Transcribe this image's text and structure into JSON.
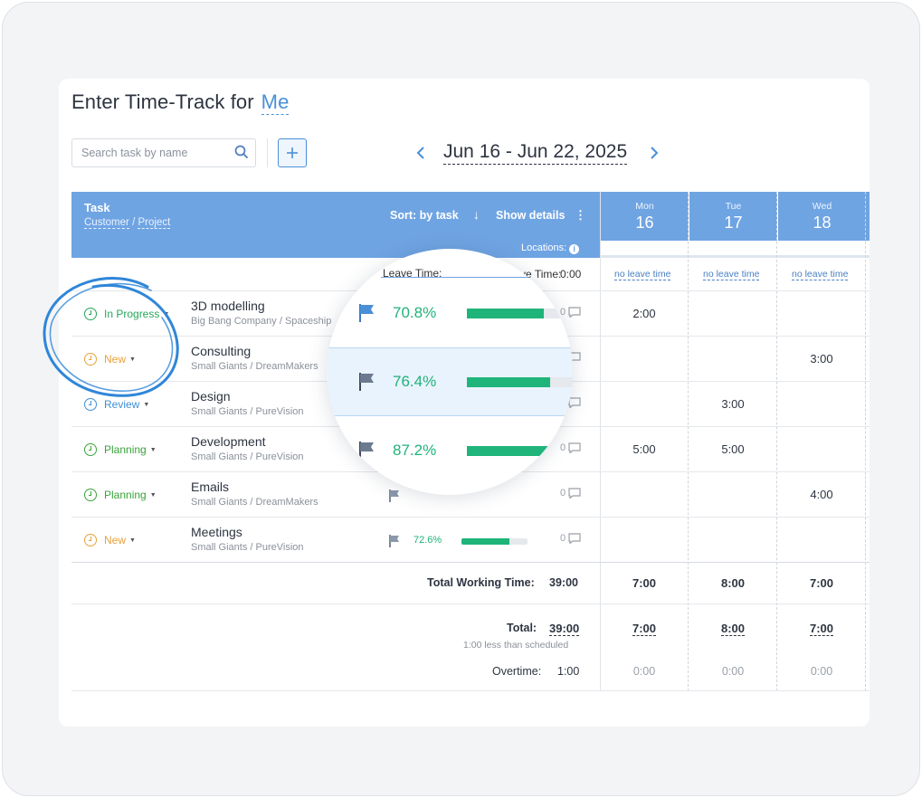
{
  "header": {
    "title_prefix": "Enter Time-Track for",
    "title_user": "Me",
    "date_range": "Jun 16 - Jun 22, 2025"
  },
  "search": {
    "placeholder": "Search task by name",
    "value": ""
  },
  "icons": {
    "search": "search-icon",
    "add": "plus-icon",
    "prev": "chevron-left-icon",
    "next": "chevron-right-icon",
    "flag": "flag-icon",
    "comment": "comment-icon",
    "info": "info-icon",
    "status": "clock-icon"
  },
  "table": {
    "col_task": "Task",
    "col_customer": "Customer",
    "col_separator": "/",
    "col_project": "Project",
    "sort_label": "Sort: by task",
    "sort_arrow": "↓",
    "details_label": "Show details",
    "details_menu": "⋮",
    "locations_label": "Locations:",
    "info_glyph": "i",
    "leave_label": "Leave Time:",
    "leave_value": "0:00",
    "days": [
      {
        "name": "Mon",
        "num": "16",
        "leave": "no leave time",
        "total_working": "7:00",
        "total": "7:00",
        "overtime": "0:00"
      },
      {
        "name": "Tue",
        "num": "17",
        "leave": "no leave time",
        "total_working": "8:00",
        "total": "8:00",
        "overtime": "0:00"
      },
      {
        "name": "Wed",
        "num": "18",
        "leave": "no leave time",
        "total_working": "7:00",
        "total": "7:00",
        "overtime": "0:00"
      }
    ],
    "rows": [
      {
        "status": "In Progress",
        "status_color": "#26a65b",
        "name": "3D modelling",
        "customer": "Big Bang Company",
        "project": "Spaceship",
        "progress": "70.8%",
        "progress_value": 0.708,
        "comments": "0",
        "hours": [
          "2:00",
          "",
          ""
        ]
      },
      {
        "status": "New",
        "status_color": "#e8a13a",
        "name": "Consulting",
        "customer": "Small Giants",
        "project": "DreamMakers",
        "progress": "76.4%",
        "progress_value": 0.764,
        "comments": "0",
        "hours": [
          "",
          "",
          "3:00"
        ]
      },
      {
        "status": "Review",
        "status_color": "#3f8fd6",
        "name": "Design",
        "customer": "Small Giants",
        "project": "PureVision",
        "progress": "",
        "progress_value": null,
        "comments": "0",
        "hours": [
          "",
          "3:00",
          ""
        ]
      },
      {
        "status": "Planning",
        "status_color": "#3aa33a",
        "name": "Development",
        "customer": "Small Giants",
        "project": "PureVision",
        "progress": "87.2%",
        "progress_value": 0.872,
        "comments": "0",
        "hours": [
          "5:00",
          "5:00",
          ""
        ]
      },
      {
        "status": "Planning",
        "status_color": "#3aa33a",
        "name": "Emails",
        "customer": "Small Giants",
        "project": "DreamMakers",
        "progress": "",
        "progress_value": null,
        "comments": "0",
        "hours": [
          "",
          "",
          "4:00"
        ]
      },
      {
        "status": "New",
        "status_color": "#e8a13a",
        "name": "Meetings",
        "customer": "Small Giants",
        "project": "PureVision",
        "progress": "72.6%",
        "progress_value": 0.726,
        "comments": "0",
        "hours": [
          "",
          "",
          ""
        ]
      }
    ],
    "total_working_label": "Total Working Time:",
    "total_working_value": "39:00",
    "total_label": "Total:",
    "total_value": "39:00",
    "schedule_note": "1:00 less than scheduled",
    "overtime_label": "Overtime:",
    "overtime_value": "1:00"
  },
  "colors": {
    "accent": "#4a8fd8",
    "header_bg": "#6fa4e3",
    "progress_green": "#1fb57a",
    "annotation_circle": "#2f86d8"
  }
}
